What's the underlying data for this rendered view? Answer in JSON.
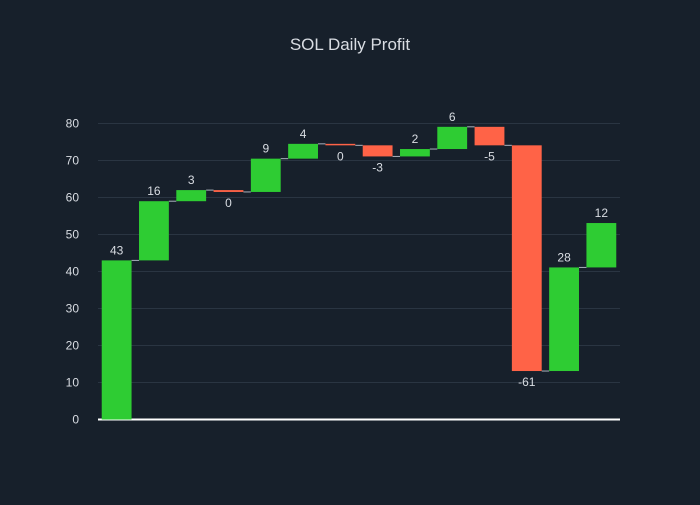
{
  "chart_data": {
    "type": "waterfall",
    "title": "SOL Daily Profit",
    "xlabel": "",
    "ylabel": "",
    "ylim": [
      0,
      88
    ],
    "yticks": [
      0,
      10,
      20,
      30,
      40,
      50,
      60,
      70,
      80
    ],
    "grid": true,
    "legend": "none",
    "colors": {
      "background": "#17202b",
      "increase": "#2ecc33",
      "decrease": "#ff6347",
      "text": "#d9dde3",
      "grid": "#2a3542",
      "zero_line": "#ffffff"
    },
    "values": [
      43,
      16,
      3,
      -0.5,
      9,
      4,
      -0.4,
      -3,
      2,
      6,
      -5,
      -61,
      28,
      12
    ],
    "labels": [
      "43",
      "16",
      "3",
      "0",
      "9",
      "4",
      "0",
      "-3",
      "2",
      "6",
      "-5",
      "-61",
      "28",
      "12"
    ]
  }
}
